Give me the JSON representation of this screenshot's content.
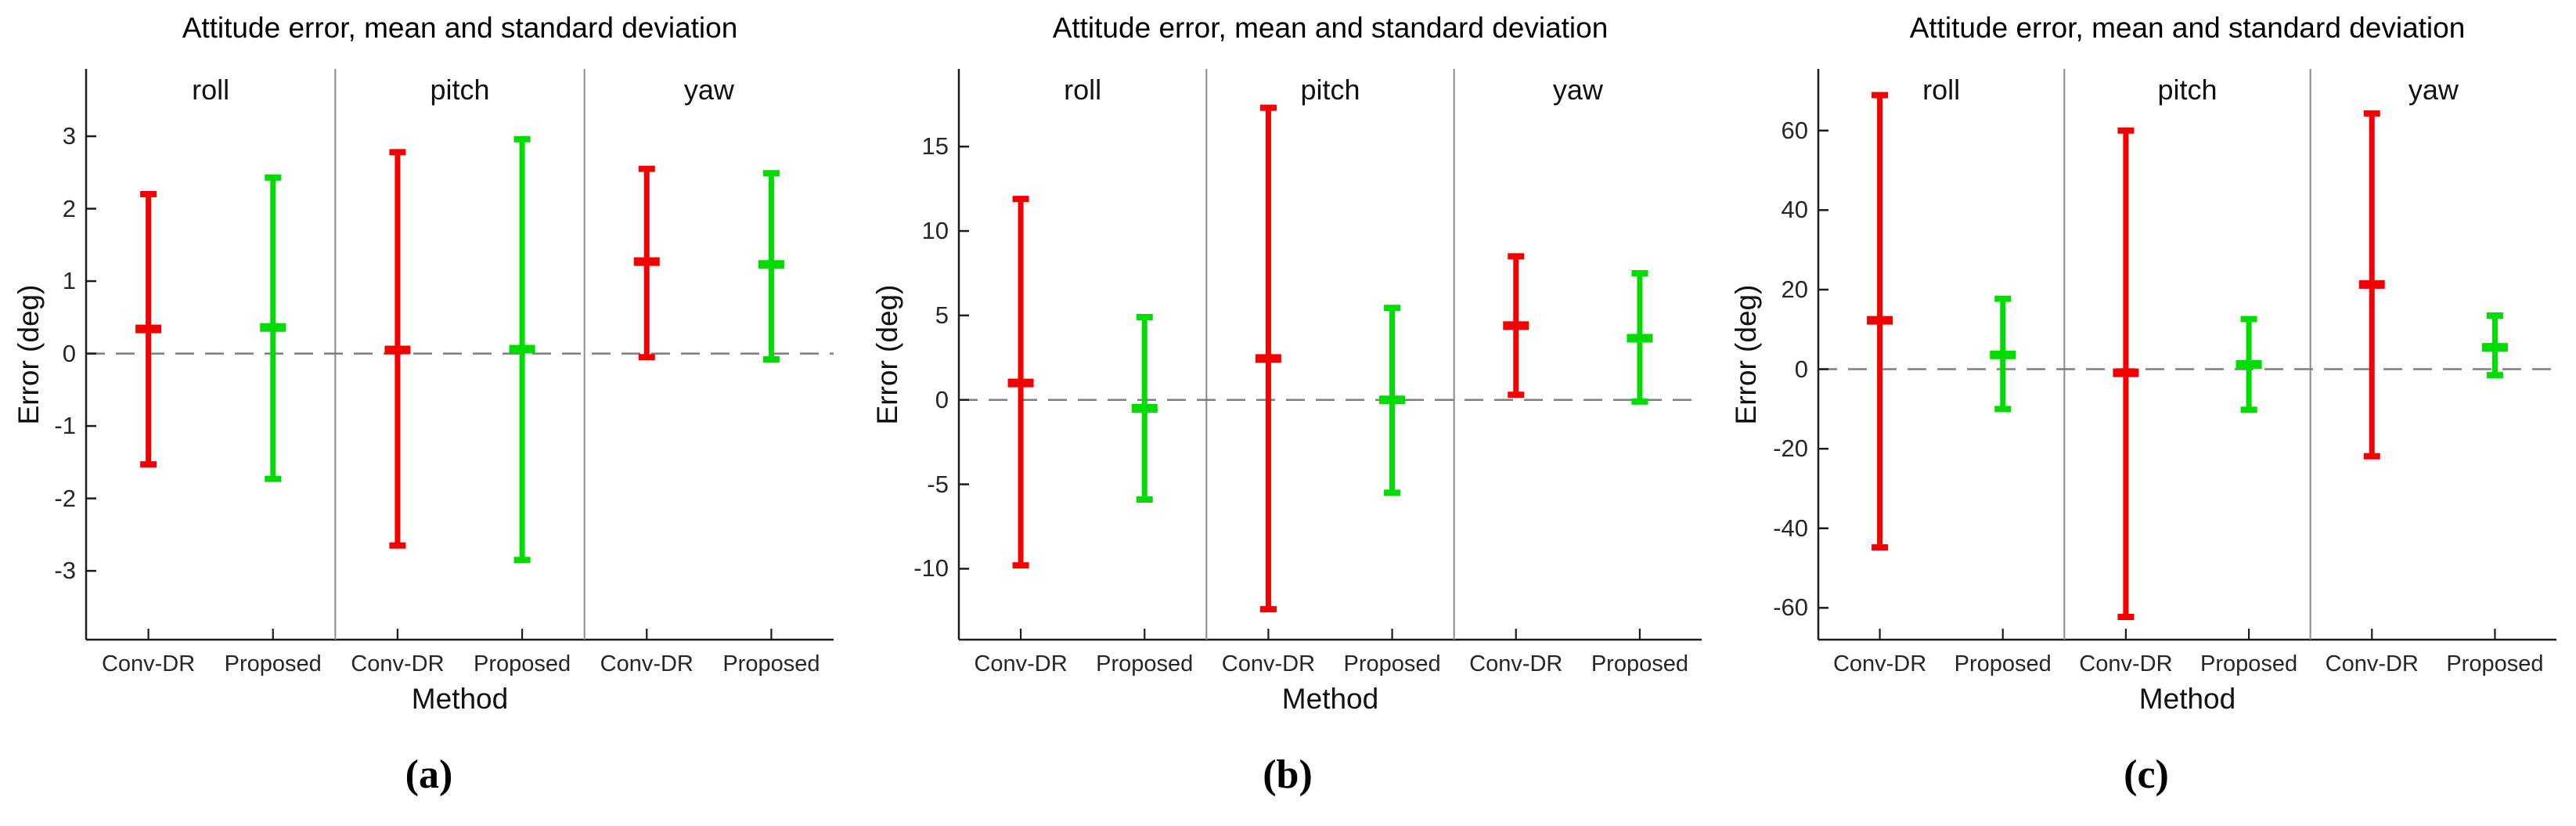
{
  "figure": {
    "background": "#ffffff"
  },
  "colors": {
    "conv_dr": "#f40000",
    "proposed": "#00dc00",
    "axis": "#1c1c1c",
    "panel_divider": "#8a8a8a",
    "zero_line": "#7d7d7d"
  },
  "chart_data": [
    {
      "type": "errorbar",
      "panel_id": "a",
      "caption": "(a)",
      "title": "Attitude error, mean and standard deviation",
      "xlabel": "Method",
      "ylabel": "Error (deg)",
      "group_labels": [
        "roll",
        "pitch",
        "yaw"
      ],
      "x_categories": [
        "Conv-DR",
        "Proposed",
        "Conv-DR",
        "Proposed",
        "Conv-DR",
        "Proposed"
      ],
      "yticks": [
        3,
        2,
        1,
        0,
        -1,
        -2,
        -3
      ],
      "ylim": [
        -3.95,
        3.93
      ],
      "zero_line": 0,
      "grid": false,
      "legend_position": "none",
      "series": [
        {
          "name": "Conv-DR",
          "color": "#f40000",
          "points": [
            {
              "group": "roll",
              "mean": 0.34,
              "upper": 2.2,
              "lower": -1.53
            },
            {
              "group": "pitch",
              "mean": 0.05,
              "upper": 2.78,
              "lower": -2.65
            },
            {
              "group": "yaw",
              "mean": 1.27,
              "upper": 2.55,
              "lower": -0.05
            }
          ]
        },
        {
          "name": "Proposed",
          "color": "#00dc00",
          "points": [
            {
              "group": "roll",
              "mean": 0.36,
              "upper": 2.43,
              "lower": -1.73
            },
            {
              "group": "pitch",
              "mean": 0.06,
              "upper": 2.96,
              "lower": -2.85
            },
            {
              "group": "yaw",
              "mean": 1.23,
              "upper": 2.49,
              "lower": -0.08
            }
          ]
        }
      ]
    },
    {
      "type": "errorbar",
      "panel_id": "b",
      "caption": "(b)",
      "title": "Attitude error, mean and standard deviation",
      "xlabel": "Method",
      "ylabel": "Error (deg)",
      "group_labels": [
        "roll",
        "pitch",
        "yaw"
      ],
      "x_categories": [
        "Conv-DR",
        "Proposed",
        "Conv-DR",
        "Proposed",
        "Conv-DR",
        "Proposed"
      ],
      "yticks": [
        15,
        10,
        5,
        0,
        -5,
        -10
      ],
      "ylim": [
        -14.2,
        19.6
      ],
      "zero_line": 0,
      "grid": false,
      "legend_position": "none",
      "series": [
        {
          "name": "Conv-DR",
          "color": "#f40000",
          "points": [
            {
              "group": "roll",
              "mean": 1.0,
              "upper": 11.9,
              "lower": -9.8
            },
            {
              "group": "pitch",
              "mean": 2.45,
              "upper": 17.3,
              "lower": -12.4
            },
            {
              "group": "yaw",
              "mean": 4.4,
              "upper": 8.5,
              "lower": 0.3
            }
          ]
        },
        {
          "name": "Proposed",
          "color": "#00dc00",
          "points": [
            {
              "group": "roll",
              "mean": -0.5,
              "upper": 4.9,
              "lower": -5.9
            },
            {
              "group": "pitch",
              "mean": 0.0,
              "upper": 5.45,
              "lower": -5.5
            },
            {
              "group": "yaw",
              "mean": 3.65,
              "upper": 7.5,
              "lower": -0.1
            }
          ]
        }
      ]
    },
    {
      "type": "errorbar",
      "panel_id": "c",
      "caption": "(c)",
      "title": "Attitude error, mean and standard deviation",
      "xlabel": "Method",
      "ylabel": "Error (deg)",
      "group_labels": [
        "roll",
        "pitch",
        "yaw"
      ],
      "x_categories": [
        "Conv-DR",
        "Proposed",
        "Conv-DR",
        "Proposed",
        "Conv-DR",
        "Proposed"
      ],
      "yticks": [
        60,
        40,
        20,
        0,
        -20,
        -40,
        -60
      ],
      "ylim": [
        -68.0,
        75.5
      ],
      "zero_line": 0,
      "grid": false,
      "legend_position": "none",
      "series": [
        {
          "name": "Conv-DR",
          "color": "#f40000",
          "points": [
            {
              "group": "roll",
              "mean": 12.3,
              "upper": 68.9,
              "lower": -44.8
            },
            {
              "group": "pitch",
              "mean": -0.9,
              "upper": 60.0,
              "lower": -62.3
            },
            {
              "group": "yaw",
              "mean": 21.3,
              "upper": 64.3,
              "lower": -21.9
            }
          ]
        },
        {
          "name": "Proposed",
          "color": "#00dc00",
          "points": [
            {
              "group": "roll",
              "mean": 3.6,
              "upper": 17.7,
              "lower": -10.0
            },
            {
              "group": "pitch",
              "mean": 1.2,
              "upper": 12.6,
              "lower": -10.2
            },
            {
              "group": "yaw",
              "mean": 5.5,
              "upper": 13.5,
              "lower": -1.5
            }
          ]
        }
      ]
    }
  ]
}
